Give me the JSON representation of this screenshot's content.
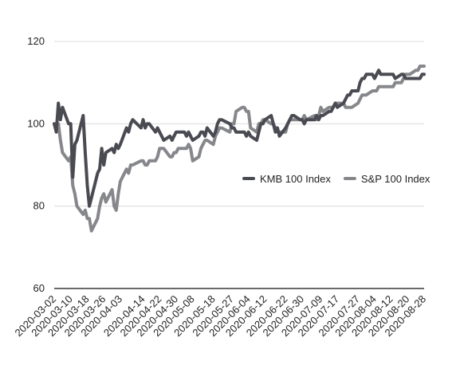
{
  "chart_data": {
    "type": "line",
    "title": "",
    "xlabel": "",
    "ylabel": "",
    "ylim": [
      60,
      120
    ],
    "yticks": [
      60,
      80,
      100,
      120
    ],
    "xticks": [
      "2020-03-02",
      "2020-03-10",
      "2020-03-18",
      "2020-03-26",
      "2020-04-03",
      "2020-04-14",
      "2020-04-22",
      "2020-04-30",
      "2020-05-08",
      "2020-05-18",
      "2020-05-27",
      "2020-06-04",
      "2020-06-12",
      "2020-06-22",
      "2020-06-30",
      "2020-07-09",
      "2020-07-17",
      "2020-07-27",
      "2020-08-04",
      "2020-08-12",
      "2020-08-20",
      "2020-08-28"
    ],
    "grid": "horizontal",
    "legend_position": "right",
    "x": [
      "2020-03-02",
      "2020-03-03",
      "2020-03-04",
      "2020-03-05",
      "2020-03-06",
      "2020-03-09",
      "2020-03-10",
      "2020-03-11",
      "2020-03-12",
      "2020-03-13",
      "2020-03-16",
      "2020-03-17",
      "2020-03-18",
      "2020-03-19",
      "2020-03-20",
      "2020-03-23",
      "2020-03-24",
      "2020-03-25",
      "2020-03-26",
      "2020-03-27",
      "2020-03-30",
      "2020-03-31",
      "2020-04-01",
      "2020-04-02",
      "2020-04-03",
      "2020-04-06",
      "2020-04-07",
      "2020-04-08",
      "2020-04-09",
      "2020-04-13",
      "2020-04-14",
      "2020-04-15",
      "2020-04-16",
      "2020-04-17",
      "2020-04-20",
      "2020-04-21",
      "2020-04-22",
      "2020-04-23",
      "2020-04-24",
      "2020-04-27",
      "2020-04-28",
      "2020-04-29",
      "2020-04-30",
      "2020-05-01",
      "2020-05-04",
      "2020-05-05",
      "2020-05-06",
      "2020-05-07",
      "2020-05-08",
      "2020-05-11",
      "2020-05-12",
      "2020-05-13",
      "2020-05-14",
      "2020-05-15",
      "2020-05-18",
      "2020-05-19",
      "2020-05-20",
      "2020-05-21",
      "2020-05-22",
      "2020-05-26",
      "2020-05-27",
      "2020-05-28",
      "2020-05-29",
      "2020-06-01",
      "2020-06-02",
      "2020-06-03",
      "2020-06-04",
      "2020-06-05",
      "2020-06-08",
      "2020-06-09",
      "2020-06-10",
      "2020-06-11",
      "2020-06-12",
      "2020-06-15",
      "2020-06-16",
      "2020-06-17",
      "2020-06-18",
      "2020-06-19",
      "2020-06-22",
      "2020-06-23",
      "2020-06-24",
      "2020-06-25",
      "2020-06-26",
      "2020-06-29",
      "2020-06-30",
      "2020-07-01",
      "2020-07-02",
      "2020-07-06",
      "2020-07-07",
      "2020-07-08",
      "2020-07-09",
      "2020-07-10",
      "2020-07-13",
      "2020-07-14",
      "2020-07-15",
      "2020-07-16",
      "2020-07-17",
      "2020-07-20",
      "2020-07-21",
      "2020-07-22",
      "2020-07-23",
      "2020-07-24",
      "2020-07-27",
      "2020-07-28",
      "2020-07-29",
      "2020-07-30",
      "2020-07-31",
      "2020-08-03",
      "2020-08-04",
      "2020-08-05",
      "2020-08-06",
      "2020-08-07",
      "2020-08-10",
      "2020-08-11",
      "2020-08-12",
      "2020-08-13",
      "2020-08-14",
      "2020-08-17",
      "2020-08-18",
      "2020-08-19",
      "2020-08-20",
      "2020-08-21",
      "2020-08-24",
      "2020-08-25",
      "2020-08-26",
      "2020-08-27",
      "2020-08-28"
    ],
    "series": [
      {
        "name": "KMB 100 Index",
        "color": "#4a4b52",
        "values": [
          100,
          98,
          105,
          101,
          104,
          100,
          100,
          87,
          95,
          96,
          102,
          93,
          85,
          80,
          82,
          88,
          89,
          94,
          90,
          93,
          94,
          93,
          95,
          94,
          95,
          99,
          98,
          100,
          101,
          99,
          101,
          99,
          100,
          100,
          98,
          99,
          98,
          97,
          96,
          97,
          96,
          97,
          98,
          98,
          98,
          97,
          98,
          97,
          96,
          97,
          98,
          98,
          97,
          99,
          97,
          98,
          100,
          101,
          101,
          100,
          99,
          99,
          98,
          98,
          98,
          97,
          98,
          97,
          96,
          98,
          100,
          100,
          101,
          102,
          100,
          98,
          99,
          97,
          99,
          100,
          101,
          102,
          102,
          101,
          101,
          100,
          101,
          101,
          102,
          101,
          102,
          102,
          103,
          103,
          104,
          105,
          104,
          105,
          106,
          107,
          107,
          108,
          108,
          110,
          111,
          111,
          112,
          112,
          111,
          112,
          113,
          112,
          112,
          112,
          112,
          112,
          111,
          112,
          112,
          111,
          111,
          111,
          111,
          111,
          111,
          112,
          112
        ],
        "name_visible": true
      },
      {
        "name": "S&P 100 Index",
        "color": "#86878b",
        "values": [
          100,
          99,
          100,
          96,
          93,
          91,
          92,
          85,
          83,
          80,
          78,
          79,
          77,
          77,
          74,
          77,
          80,
          82,
          83,
          81,
          84,
          80,
          79,
          83,
          86,
          89,
          88,
          90,
          90,
          91,
          91,
          90,
          90,
          91,
          91,
          92,
          94,
          94,
          94,
          92,
          92,
          93,
          93,
          94,
          94,
          94,
          95,
          94,
          91,
          92,
          94,
          95,
          96,
          96,
          95,
          97,
          98,
          99,
          99,
          98,
          100,
          100,
          103,
          104,
          104,
          103,
          103,
          99,
          98,
          100,
          100,
          101,
          101,
          100,
          100,
          99,
          98,
          98,
          98,
          100,
          101,
          101,
          101,
          101,
          101,
          102,
          101,
          102,
          101,
          102,
          104,
          103,
          104,
          104,
          104,
          105,
          105,
          105,
          104,
          104,
          104,
          104,
          105,
          106,
          107,
          107,
          107,
          108,
          108,
          108,
          109,
          109,
          109,
          109,
          109,
          109,
          110,
          110,
          111,
          112,
          112,
          112,
          113,
          113,
          114,
          114,
          114
        ]
      }
    ]
  }
}
